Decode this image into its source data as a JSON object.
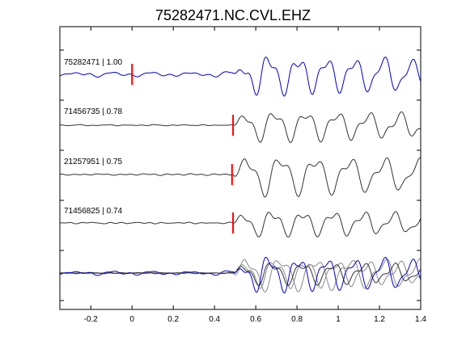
{
  "chart_data": {
    "type": "line",
    "title": "75282471.NC.CVL.EHZ",
    "xlabel": "",
    "ylabel": "",
    "xlim": [
      -0.35,
      1.4
    ],
    "x_ticks": [
      -0.2,
      0,
      0.2,
      0.4,
      0.6,
      0.8,
      1,
      1.2,
      1.4
    ],
    "x_tick_labels": [
      "-0.2",
      "0",
      "0.2",
      "0.4",
      "0.6",
      "0.8",
      "1",
      "1.2",
      "1.4"
    ],
    "grid": false,
    "colors": {
      "reference": "#0000cc",
      "match": "#333333",
      "stack_gray": "#888888",
      "pick": "#ff0000"
    },
    "traces": [
      {
        "label": "75282471 | 1.00",
        "pick_time": 0.0,
        "color": "reference"
      },
      {
        "label": "71456735 | 0.78",
        "pick_time": 0.49,
        "color": "match"
      },
      {
        "label": "21257951 | 0.75",
        "pick_time": 0.485,
        "color": "match"
      },
      {
        "label": "71456825 | 0.74",
        "pick_time": 0.49,
        "color": "match"
      }
    ]
  }
}
